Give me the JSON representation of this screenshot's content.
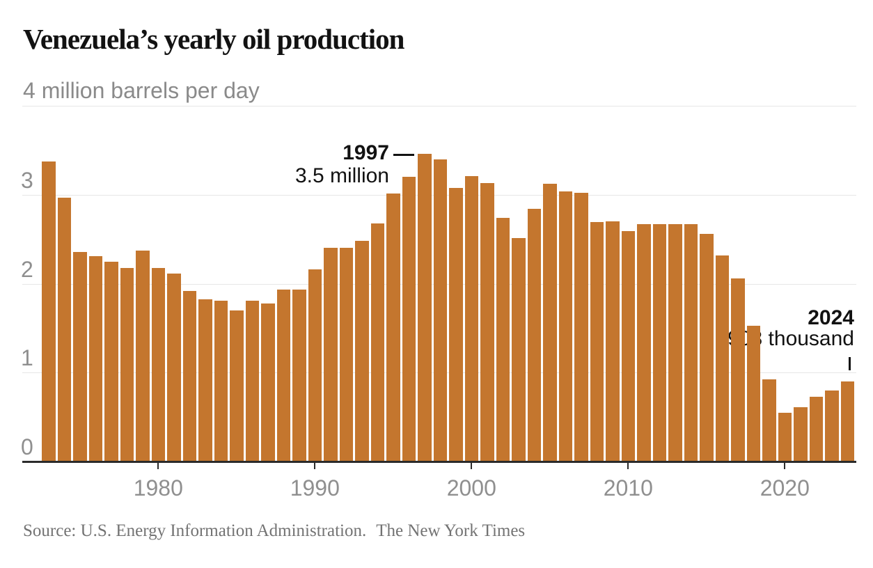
{
  "header": {
    "title": "Venezuela’s yearly oil production",
    "subtitle_unit": "4 million barrels per day"
  },
  "chart_data": {
    "type": "bar",
    "title": "Venezuela’s yearly oil production",
    "ylabel": "million barrels per day",
    "ylim": [
      0,
      4
    ],
    "grid": true,
    "ytick_labels": [
      "0",
      "1",
      "2",
      "3"
    ],
    "top_axis_label": "4 million barrels per day",
    "xtick_labels": [
      "1980",
      "1990",
      "2000",
      "2010",
      "2020"
    ],
    "bar_color": "#c4762e",
    "years": [
      1973,
      1974,
      1975,
      1976,
      1977,
      1978,
      1979,
      1980,
      1981,
      1982,
      1983,
      1984,
      1985,
      1986,
      1987,
      1988,
      1989,
      1990,
      1991,
      1992,
      1993,
      1994,
      1995,
      1996,
      1997,
      1998,
      1999,
      2000,
      2001,
      2002,
      2003,
      2004,
      2005,
      2006,
      2007,
      2008,
      2009,
      2010,
      2011,
      2012,
      2013,
      2014,
      2015,
      2016,
      2017,
      2018,
      2019,
      2020,
      2021,
      2022,
      2023,
      2024
    ],
    "values": [
      3.37,
      2.97,
      2.36,
      2.31,
      2.25,
      2.18,
      2.37,
      2.18,
      2.11,
      1.92,
      1.82,
      1.81,
      1.7,
      1.81,
      1.78,
      1.93,
      1.93,
      2.16,
      2.4,
      2.4,
      2.48,
      2.68,
      3.01,
      3.2,
      3.46,
      3.4,
      3.08,
      3.21,
      3.13,
      2.74,
      2.51,
      2.84,
      3.12,
      3.04,
      3.02,
      2.69,
      2.7,
      2.59,
      2.67,
      2.67,
      2.67,
      2.67,
      2.56,
      2.32,
      2.06,
      1.53,
      0.92,
      0.55,
      0.61,
      0.73,
      0.8,
      0.903
    ],
    "annotations": [
      {
        "year": "1997",
        "value_label": "3.5 million"
      },
      {
        "year": "2024",
        "value_label": "903 thousand"
      }
    ]
  },
  "source": {
    "text": "Source: U.S. Energy Information Administration.",
    "credit": "The New York Times"
  }
}
